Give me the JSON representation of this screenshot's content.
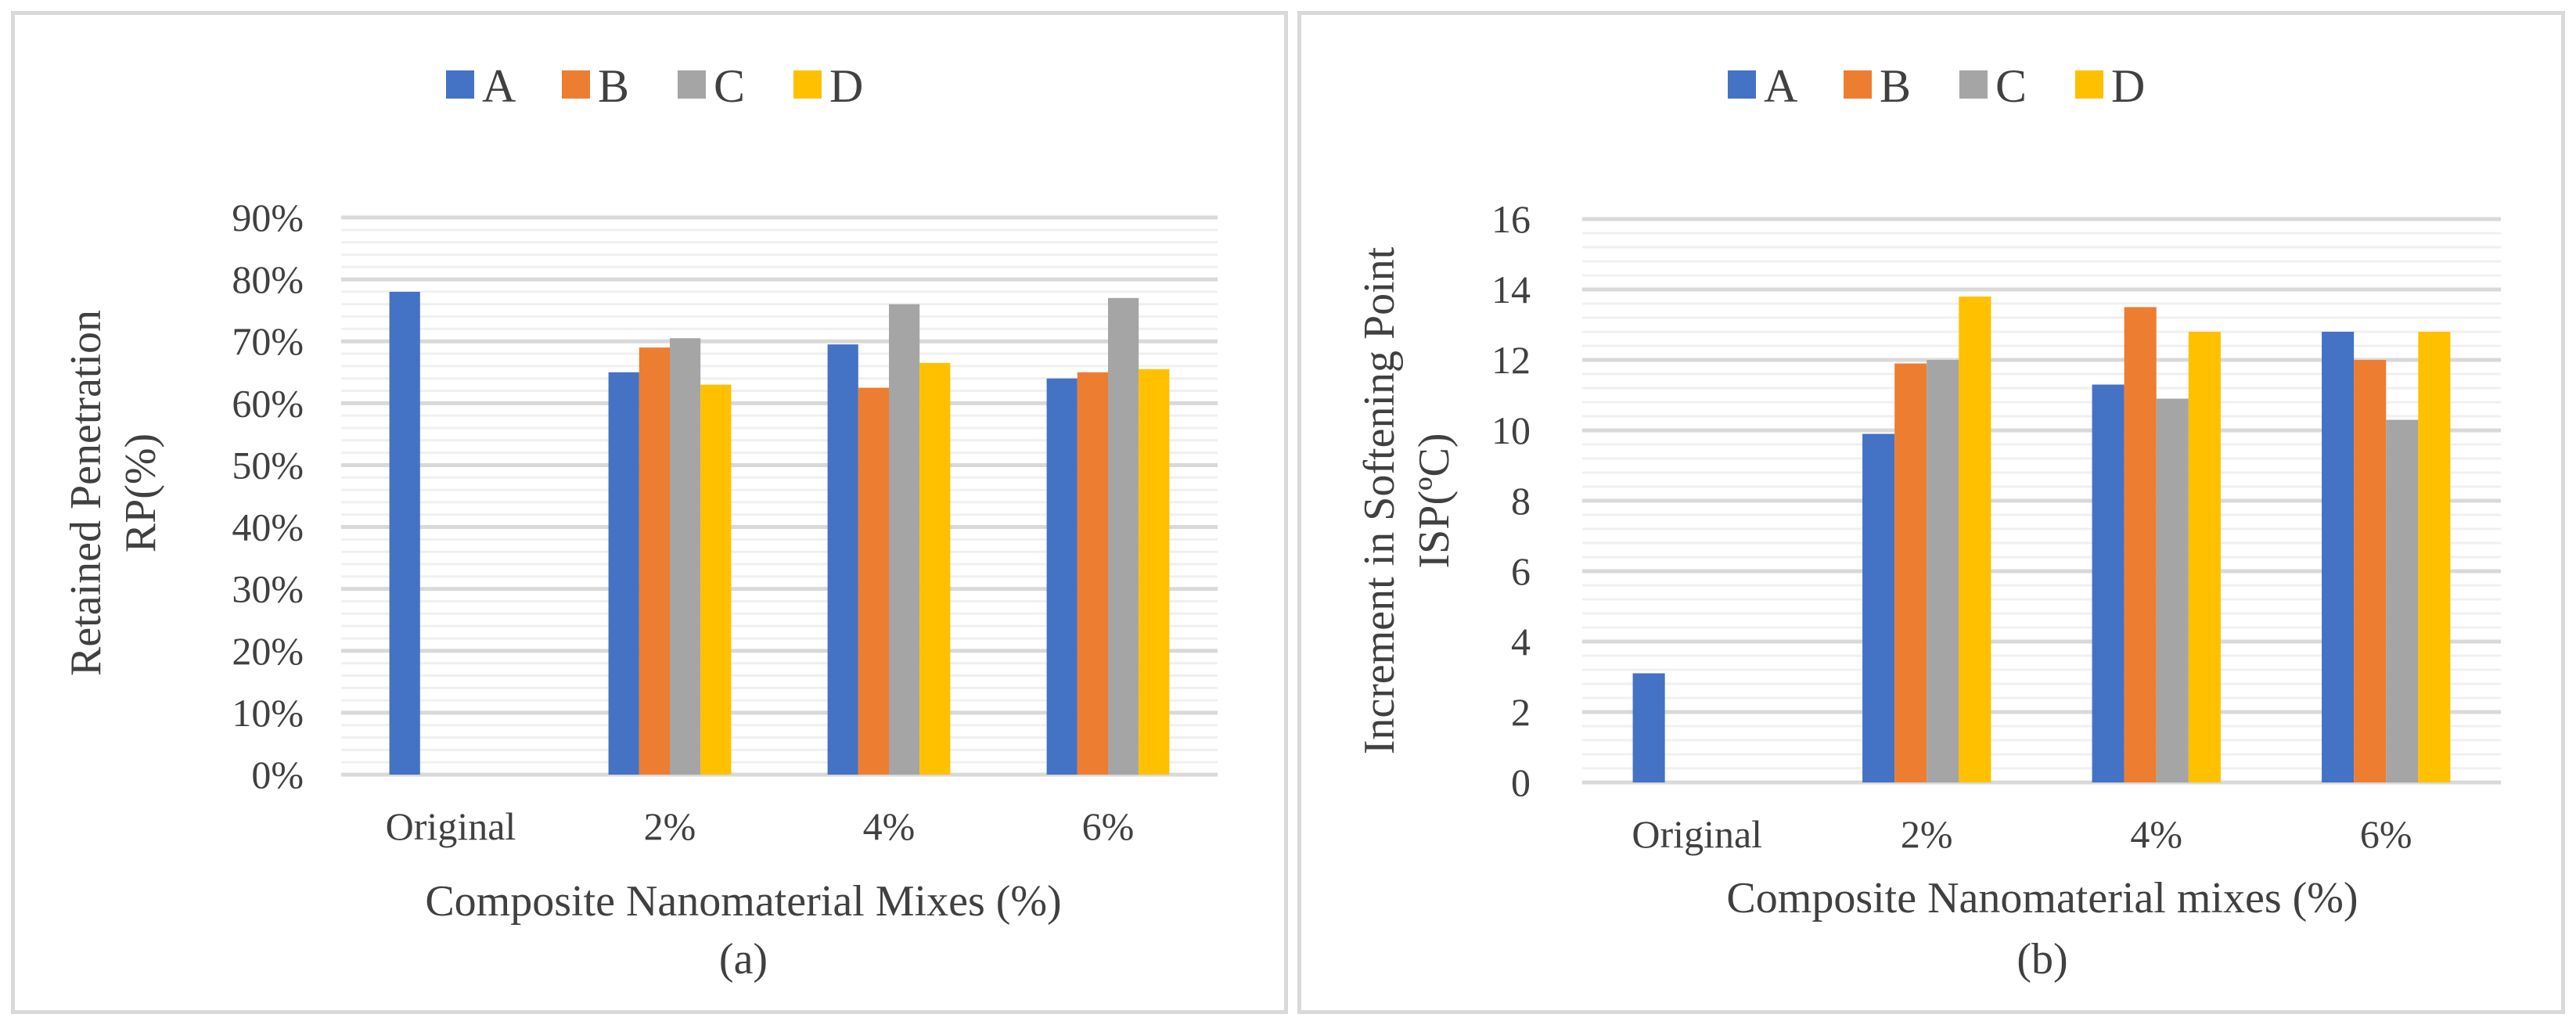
{
  "colors": {
    "A": "#4472c4",
    "B": "#ed7d31",
    "C": "#a5a5a5",
    "D": "#ffc000",
    "grid_major": "#d9d9d9",
    "grid_minor": "#f0f0f0",
    "text": "#404040"
  },
  "chart_data": [
    {
      "type": "bar",
      "panel_label": "(a)",
      "title": "",
      "xlabel": "Composite Nanomaterial Mixes (%)",
      "ylabel_line1": "Retained Penetration",
      "ylabel_line2": "RP(%)",
      "categories": [
        "Original",
        "2%",
        "4%",
        "6%"
      ],
      "series": [
        {
          "name": "A",
          "values": [
            78,
            65,
            69.5,
            64
          ]
        },
        {
          "name": "B",
          "values": [
            null,
            69,
            62.5,
            65
          ]
        },
        {
          "name": "C",
          "values": [
            null,
            70.5,
            76,
            77
          ]
        },
        {
          "name": "D",
          "values": [
            null,
            63,
            66.5,
            65.5
          ]
        }
      ],
      "ylim": [
        0,
        90
      ],
      "ymajor": 10,
      "yminor": 2,
      "ytick_labels": [
        "0%",
        "10%",
        "20%",
        "30%",
        "40%",
        "50%",
        "60%",
        "70%",
        "80%",
        "90%"
      ],
      "legend": [
        "A",
        "B",
        "C",
        "D"
      ],
      "legend_position": "top",
      "grid": true
    },
    {
      "type": "bar",
      "panel_label": "(b)",
      "title": "",
      "xlabel": "Composite Nanomaterial mixes (%)",
      "ylabel_line1": "Increment in Softening Point",
      "ylabel_line2": "ISP(ºC)",
      "categories": [
        "Original",
        "2%",
        "4%",
        "6%"
      ],
      "series": [
        {
          "name": "A",
          "values": [
            3.1,
            9.9,
            11.3,
            12.8
          ]
        },
        {
          "name": "B",
          "values": [
            null,
            11.9,
            13.5,
            12
          ]
        },
        {
          "name": "C",
          "values": [
            null,
            12,
            10.9,
            10.3
          ]
        },
        {
          "name": "D",
          "values": [
            null,
            13.8,
            12.8,
            12.8
          ]
        }
      ],
      "ylim": [
        0,
        16
      ],
      "ymajor": 2,
      "yminor": 0.4,
      "ytick_labels": [
        "0",
        "2",
        "4",
        "6",
        "8",
        "10",
        "12",
        "14",
        "16"
      ],
      "legend": [
        "A",
        "B",
        "C",
        "D"
      ],
      "legend_position": "top",
      "grid": true
    }
  ]
}
